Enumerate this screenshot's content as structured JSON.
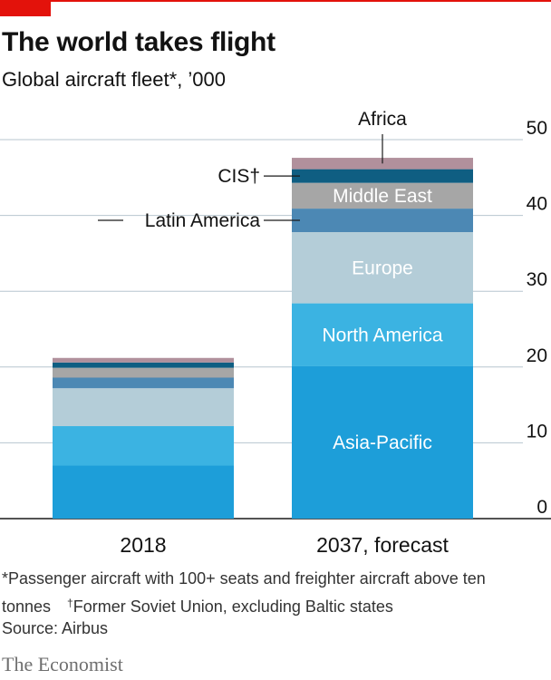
{
  "header": {
    "title": "The world takes flight",
    "subtitle": "Global aircraft fleet*, ’000"
  },
  "chart_data": {
    "type": "bar",
    "stacked": true,
    "title": "The world takes flight",
    "subtitle": "Global aircraft fleet*, ’000",
    "categories": [
      "2018",
      "2037, forecast"
    ],
    "ylim": [
      0,
      50
    ],
    "yticks": [
      0,
      10,
      20,
      30,
      40,
      50
    ],
    "y_axis_side": "right",
    "grid": true,
    "series": [
      {
        "name": "Asia-Pacific",
        "values": [
          7.0,
          20.1
        ],
        "color": "#1d9ed9"
      },
      {
        "name": "North America",
        "values": [
          5.2,
          8.3
        ],
        "color": "#3bb3e2"
      },
      {
        "name": "Europe",
        "values": [
          5.0,
          9.4
        ],
        "color": "#b4cdd8"
      },
      {
        "name": "Latin America",
        "values": [
          1.4,
          3.1
        ],
        "color": "#4c88b4"
      },
      {
        "name": "Middle East",
        "values": [
          1.3,
          3.4
        ],
        "color": "#a6a6a6"
      },
      {
        "name": "CIS†",
        "values": [
          0.7,
          1.8
        ],
        "color": "#0f5e82"
      },
      {
        "name": "Africa",
        "values": [
          0.6,
          1.5
        ],
        "color": "#b1909c"
      }
    ]
  },
  "footnotes": {
    "note1": "*Passenger aircraft with 100+ seats and freighter aircraft above ten tonnes",
    "dagger": "†",
    "note2": "Former Soviet Union, excluding Baltic states",
    "source": "Source: Airbus"
  },
  "brand": "The Economist"
}
